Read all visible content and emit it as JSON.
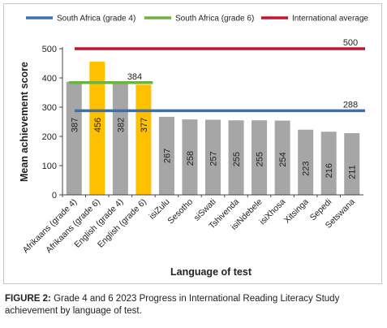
{
  "chart_data": {
    "type": "bar",
    "xlabel": "Language of test",
    "ylabel": "Mean achievement score",
    "ylim": [
      0,
      500
    ],
    "yticks": [
      0,
      100,
      200,
      300,
      400,
      500
    ],
    "categories": [
      "Afrikaans (grade 4)",
      "Afrikaans (grade 6)",
      "English (grade 4)",
      "English (grade 6)",
      "isiZulu",
      "Sesotho",
      "siSwati",
      "Tshivenda",
      "isiNdebele",
      "isiXhosa",
      "Xitsinga",
      "Sepedi",
      "Setswana"
    ],
    "values": [
      387,
      456,
      382,
      377,
      267,
      258,
      257,
      255,
      255,
      254,
      223,
      216,
      211
    ],
    "bar_colors": [
      "#a6a6a6",
      "#ffc000",
      "#a6a6a6",
      "#ffc000",
      "#a6a6a6",
      "#a6a6a6",
      "#a6a6a6",
      "#a6a6a6",
      "#a6a6a6",
      "#a6a6a6",
      "#a6a6a6",
      "#a6a6a6",
      "#a6a6a6"
    ],
    "reference_lines": [
      {
        "name": "South Africa (grade 4)",
        "value": 288,
        "label": "288",
        "color": "#3a6fb0",
        "span": "all"
      },
      {
        "name": "South Africa (grade 6)",
        "value": 384,
        "label": "384",
        "color": "#6db33f",
        "span": "first-4"
      },
      {
        "name": "International average",
        "value": 500,
        "label": "500",
        "color": "#c0172d",
        "span": "all"
      }
    ],
    "legend_position": "top",
    "grid": false
  },
  "caption": {
    "label": "FIGURE 2:",
    "text": "Grade 4 and 6 2023 Progress in International Reading Literacy Study achievement by language of test."
  }
}
